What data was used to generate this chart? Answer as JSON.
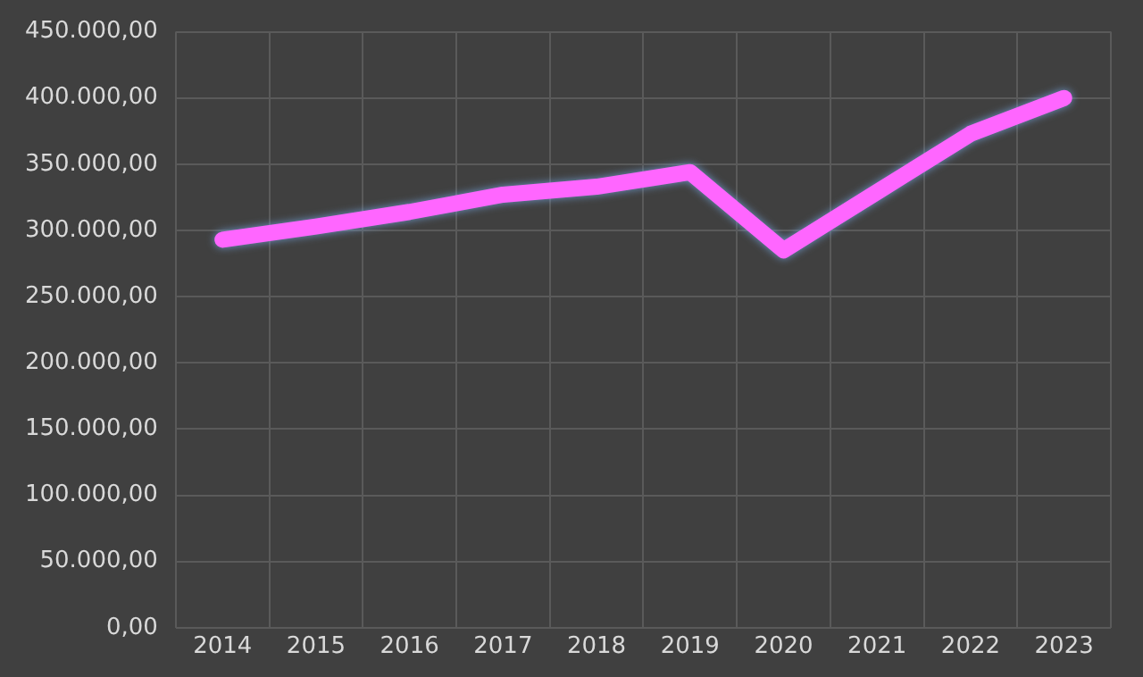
{
  "chart_data": {
    "type": "line",
    "categories": [
      "2014",
      "2015",
      "2016",
      "2017",
      "2018",
      "2019",
      "2020",
      "2021",
      "2022",
      "2023"
    ],
    "series": [
      {
        "color": "#ff66ff",
        "values": [
          293000,
          303000,
          314000,
          327000,
          333000,
          344000,
          285000,
          329000,
          373000,
          400000
        ]
      }
    ],
    "ylim": [
      0,
      450000
    ],
    "yticks": [
      {
        "value": 0,
        "label": "0,00"
      },
      {
        "value": 50000,
        "label": "50.000,00"
      },
      {
        "value": 100000,
        "label": "100.000,00"
      },
      {
        "value": 150000,
        "label": "150.000,00"
      },
      {
        "value": 200000,
        "label": "200.000,00"
      },
      {
        "value": 250000,
        "label": "250.000,00"
      },
      {
        "value": 300000,
        "label": "300.000,00"
      },
      {
        "value": 350000,
        "label": "350.000,00"
      },
      {
        "value": 400000,
        "label": "400.000,00"
      },
      {
        "value": 450000,
        "label": "450.000,00"
      }
    ],
    "grid": true,
    "legend": false,
    "marker": "none",
    "line_style": "solid"
  }
}
